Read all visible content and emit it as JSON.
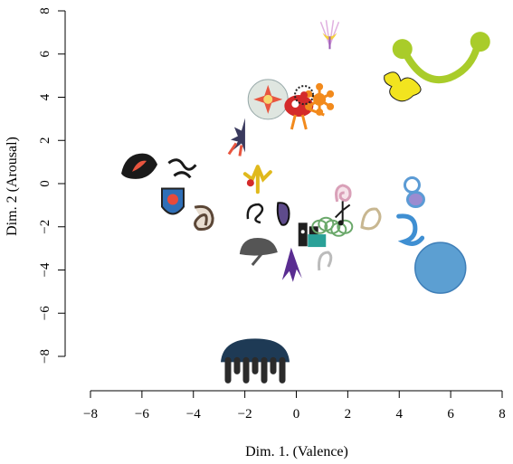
{
  "chart_data": {
    "type": "scatter",
    "title": "",
    "xlabel": "Dim. 1. (Valence)",
    "ylabel": "Dim. 2 (Arousal)",
    "xlim": [
      -8,
      8
    ],
    "ylim": [
      -8,
      8
    ],
    "xticks": [
      "−8",
      "−6",
      "−4",
      "−2",
      "0",
      "2",
      "4",
      "6",
      "8"
    ],
    "yticks": [
      "−8",
      "−6",
      "−4",
      "−2",
      "0",
      "2",
      "4",
      "6",
      "8"
    ],
    "grid": false,
    "marker_style": "abstract-drawing",
    "points": [
      {
        "x": 1.3,
        "y": 6.9,
        "icon": "fan-flower-icon",
        "color": "#9b59b6"
      },
      {
        "x": 4.2,
        "y": 4.5,
        "icon": "yellow-squiggle-icon",
        "color": "#f2e41f"
      },
      {
        "x": 5.6,
        "y": 5.9,
        "icon": "green-u-shape-icon",
        "color": "#a9cc2a"
      },
      {
        "x": -1.1,
        "y": 3.9,
        "icon": "sunburst-icon",
        "color": "#e8553f"
      },
      {
        "x": 0.1,
        "y": 3.6,
        "icon": "red-creature-icon",
        "color": "#d42a2a"
      },
      {
        "x": 0.9,
        "y": 3.9,
        "icon": "orange-splat-icon",
        "color": "#f28a1c"
      },
      {
        "x": 0.3,
        "y": 4.1,
        "icon": "black-flower-icon",
        "color": "#222222"
      },
      {
        "x": -2.2,
        "y": 2.2,
        "icon": "spiky-dark-icon",
        "color": "#3a3a5e"
      },
      {
        "x": -6.1,
        "y": 0.8,
        "icon": "black-flame-icon",
        "color": "#1a1a1a"
      },
      {
        "x": -4.4,
        "y": 0.7,
        "icon": "black-squiggle-icon",
        "color": "#1a1a1a"
      },
      {
        "x": -4.8,
        "y": -0.9,
        "icon": "shield-face-icon",
        "color": "#2f6fb7"
      },
      {
        "x": -3.6,
        "y": -1.6,
        "icon": "tangled-brown-icon",
        "color": "#5b4636"
      },
      {
        "x": -1.5,
        "y": 0.2,
        "icon": "yellow-claw-icon",
        "color": "#e0b91c"
      },
      {
        "x": -1.6,
        "y": -1.3,
        "icon": "knot-icon",
        "color": "#1a1a1a"
      },
      {
        "x": -0.5,
        "y": -1.4,
        "icon": "purple-drop-icon",
        "color": "#5e4b8b"
      },
      {
        "x": -1.5,
        "y": -3.1,
        "icon": "grey-mushroom-icon",
        "color": "#555555"
      },
      {
        "x": -0.2,
        "y": -3.8,
        "icon": "purple-tuft-icon",
        "color": "#5a2d91"
      },
      {
        "x": 0.5,
        "y": -2.4,
        "icon": "dark-rectangles-icon",
        "color": "#1f1f1f"
      },
      {
        "x": 0.8,
        "y": -2.6,
        "icon": "teal-block-icon",
        "color": "#2aa198"
      },
      {
        "x": 1.4,
        "y": -2.0,
        "icon": "green-coil-icon",
        "color": "#6aa86a"
      },
      {
        "x": 1.1,
        "y": -3.6,
        "icon": "white-hook-icon",
        "color": "#bbbbbb"
      },
      {
        "x": 1.8,
        "y": -0.5,
        "icon": "pink-swirl-icon",
        "color": "#d9a0b8"
      },
      {
        "x": 1.8,
        "y": -1.4,
        "icon": "stick-figure-icon",
        "color": "#1a1a1a"
      },
      {
        "x": 2.9,
        "y": -1.6,
        "icon": "beige-shell-icon",
        "color": "#c8b791"
      },
      {
        "x": 4.5,
        "y": -0.4,
        "icon": "blue-loops-icon",
        "color": "#5b9bd5"
      },
      {
        "x": 4.4,
        "y": -2.1,
        "icon": "blue-wave-icon",
        "color": "#3f8fd2"
      },
      {
        "x": 5.6,
        "y": -3.9,
        "icon": "blue-circle-icon",
        "color": "#5c9fd2"
      },
      {
        "x": -1.6,
        "y": -8.1,
        "icon": "dark-jellyfish-icon",
        "color": "#1e3a55"
      }
    ]
  }
}
